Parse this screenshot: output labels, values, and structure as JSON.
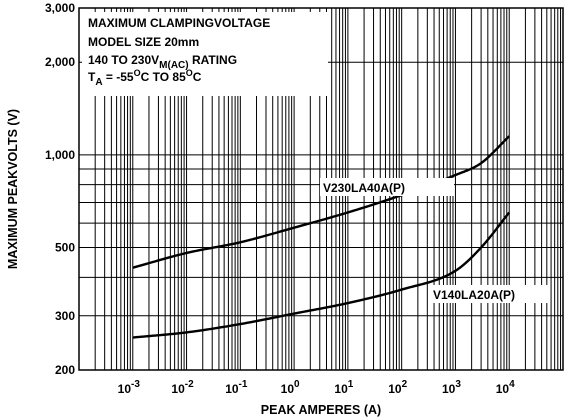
{
  "chart_data": {
    "type": "line",
    "annotation": {
      "line1": "MAXIMUM CLAMPINGVOLTAGE",
      "line2": "MODEL SIZE 20mm",
      "line3_prefix": "140 TO 230V",
      "line3_sub": "M(AC)",
      "line3_suffix": " RATING",
      "line4_t": "T",
      "line4_sub": "A",
      "line4_mid": " = -55",
      "line4_sup1": "O",
      "line4_mid2": "C TO 85",
      "line4_sup2": "O",
      "line4_end": "C"
    },
    "xlabel": "PEAK AMPERES (A)",
    "ylabel": "MAXIMUM PEAKVOLTS (V)",
    "x_scale": "log",
    "y_scale": "log",
    "xlim": [
      0.0001,
      100000
    ],
    "ylim": [
      200,
      3000
    ],
    "x_ticks": [
      {
        "value": 0.001,
        "base": "10",
        "exp": "-3"
      },
      {
        "value": 0.01,
        "base": "10",
        "exp": "-2"
      },
      {
        "value": 0.1,
        "base": "10",
        "exp": "-1"
      },
      {
        "value": 1,
        "base": "10",
        "exp": "0"
      },
      {
        "value": 10,
        "base": "10",
        "exp": "1"
      },
      {
        "value": 100,
        "base": "10",
        "exp": "2"
      },
      {
        "value": 1000,
        "base": "10",
        "exp": "3"
      },
      {
        "value": 10000,
        "base": "10",
        "exp": "4"
      }
    ],
    "y_ticks": [
      {
        "value": 200,
        "label": "200"
      },
      {
        "value": 300,
        "label": "300"
      },
      {
        "value": 500,
        "label": "500"
      },
      {
        "value": 1000,
        "label": "1,000"
      },
      {
        "value": 2000,
        "label": "2,000"
      },
      {
        "value": 3000,
        "label": "3,000"
      }
    ],
    "grid": true,
    "series": [
      {
        "name": "V230LA40A(P)",
        "x": [
          0.001,
          0.01,
          0.1,
          1,
          10,
          100,
          1000,
          3000,
          10000
        ],
        "y": [
          430,
          480,
          520,
          580,
          650,
          740,
          860,
          940,
          1150
        ]
      },
      {
        "name": "V140LA20A(P)",
        "x": [
          0.001,
          0.01,
          0.1,
          1,
          10,
          100,
          1000,
          3000,
          10000
        ],
        "y": [
          255,
          265,
          282,
          305,
          330,
          365,
          420,
          500,
          650
        ]
      }
    ]
  }
}
